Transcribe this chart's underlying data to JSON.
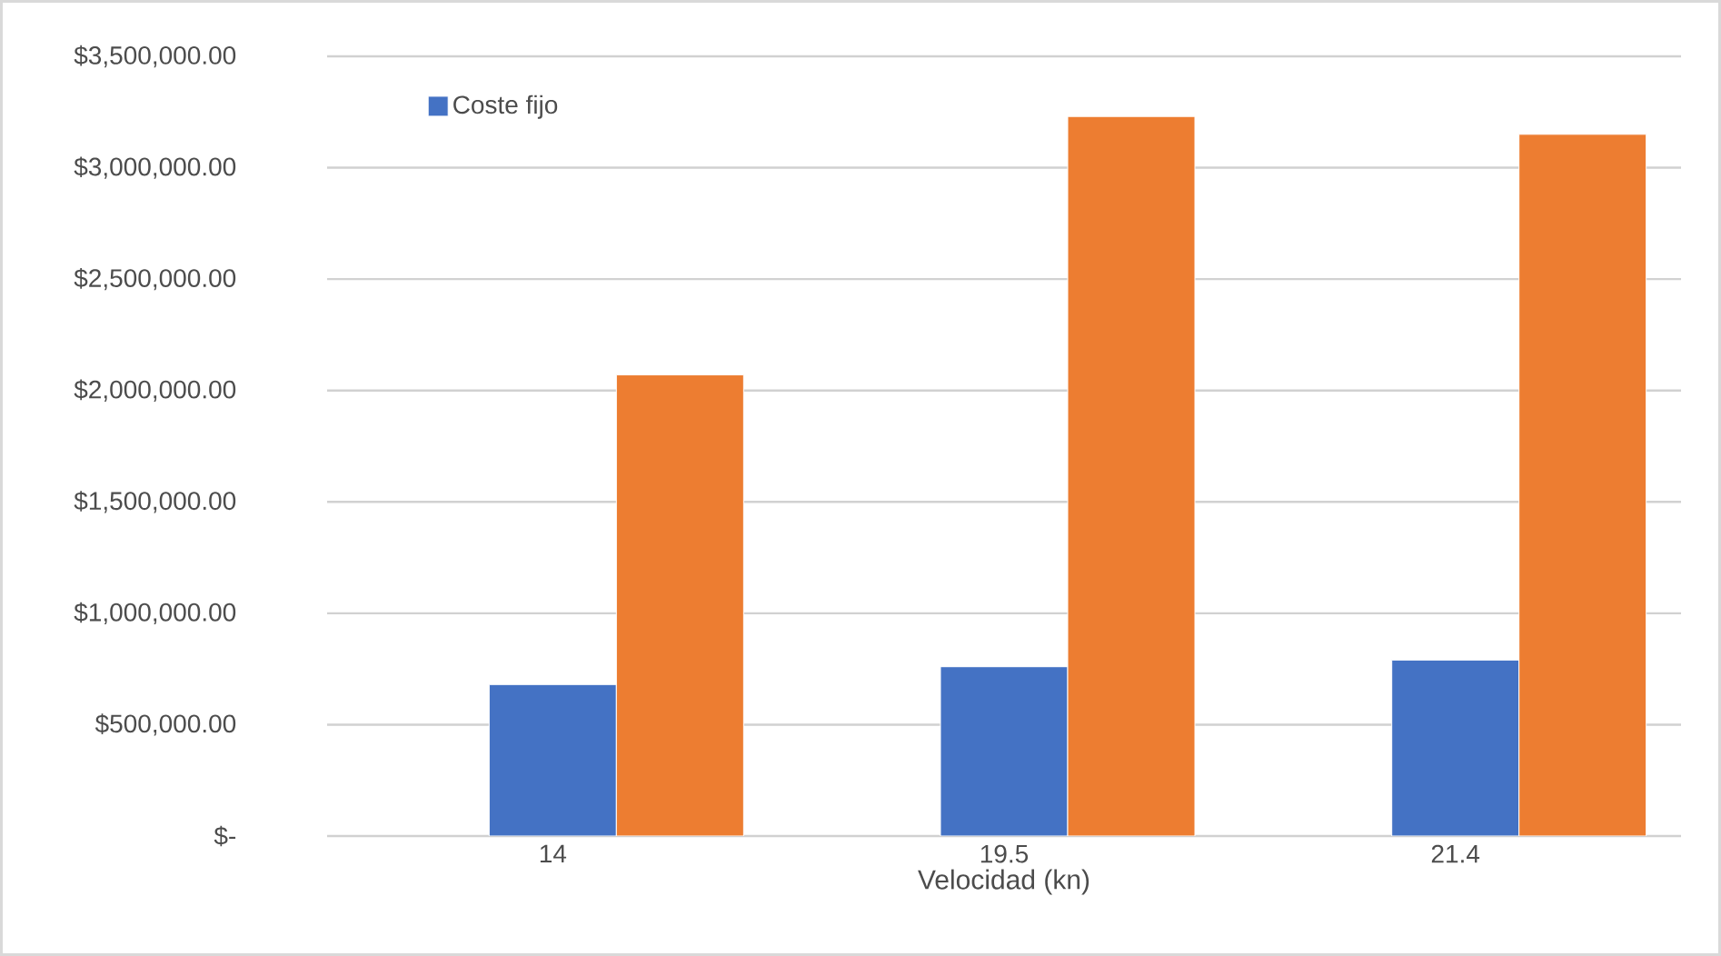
{
  "chart_data": {
    "type": "bar",
    "xlabel": "Velocidad (kn)",
    "categories": [
      "14",
      "19.5",
      "21.4"
    ],
    "series": [
      {
        "name": "Coste fijo",
        "color": "#4472c4",
        "values": [
          680000,
          760000,
          790000
        ]
      },
      {
        "color": "#ed7d31",
        "values": [
          2070000,
          3230000,
          3150000
        ]
      }
    ],
    "ylim": [
      0,
      3500000
    ],
    "yticks": [
      {
        "value": 0,
        "label": "$-"
      },
      {
        "value": 500000,
        "label": "$500,000.00"
      },
      {
        "value": 1000000,
        "label": "$1,000,000.00"
      },
      {
        "value": 1500000,
        "label": "$1,500,000.00"
      },
      {
        "value": 2000000,
        "label": "$2,000,000.00"
      },
      {
        "value": 2500000,
        "label": "$2,500,000.00"
      },
      {
        "value": 3000000,
        "label": "$3,000,000.00"
      },
      {
        "value": 3500000,
        "label": "$3,500,000.00"
      }
    ],
    "grid": "y",
    "legend": "top left"
  }
}
